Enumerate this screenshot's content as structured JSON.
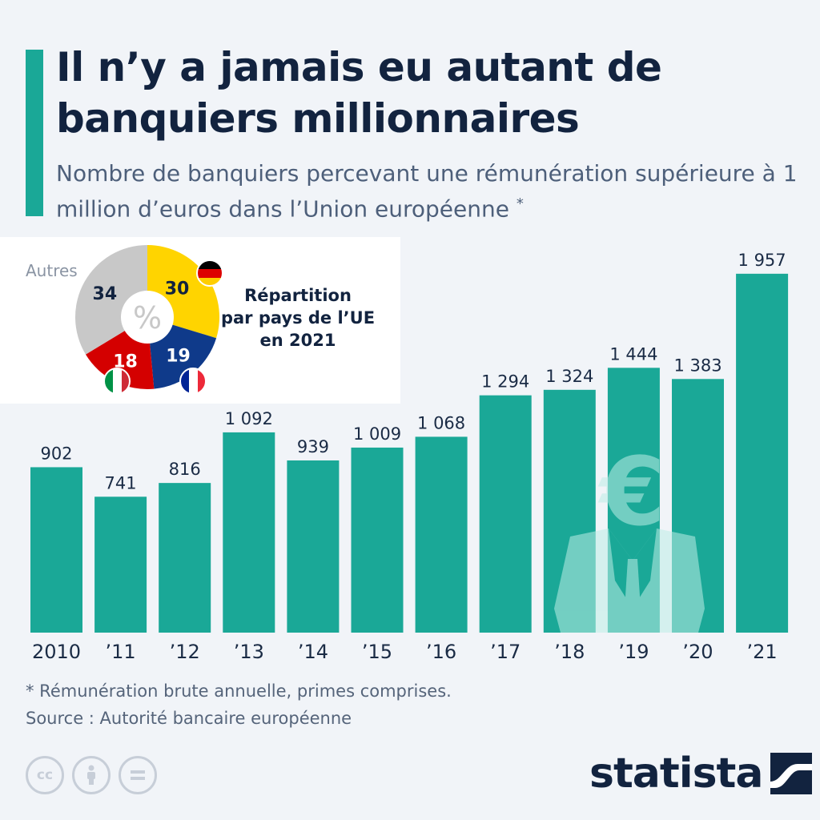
{
  "header": {
    "title": "Il n’y a jamais eu autant de banquiers millionnaires",
    "subtitle": "Nombre de banquiers percevant une rémunération supérieure à 1 million d’euros dans l’Union européenne",
    "subtitle_marker": "*"
  },
  "chart_data": [
    {
      "type": "bar",
      "categories": [
        "2010",
        "’11",
        "’12",
        "’13",
        "’14",
        "’15",
        "’16",
        "’17",
        "’18",
        "’19",
        "’20",
        "’21"
      ],
      "values": [
        902,
        741,
        816,
        1092,
        939,
        1009,
        1068,
        1294,
        1324,
        1444,
        1383,
        1957
      ],
      "value_labels": [
        "902",
        "741",
        "816",
        "1 092",
        "939",
        "1 009",
        "1 068",
        "1 294",
        "1 324",
        "1 444",
        "1 383",
        "1 957"
      ],
      "ylim": [
        0,
        2000
      ],
      "grid": false,
      "bar_color": "#1aa897"
    },
    {
      "type": "pie",
      "title": "Répartition par pays de l’UE en 2021",
      "center_label": "%",
      "slices": [
        {
          "label": "30",
          "value": 30,
          "color": "#ffd400",
          "flag": "germany-flag"
        },
        {
          "label": "19",
          "value": 19,
          "color": "#0f3a8a",
          "flag": "france-flag"
        },
        {
          "label": "18",
          "value": 18,
          "color": "#d40000",
          "flag": "italy-flag"
        },
        {
          "label": "34",
          "value": 34,
          "color": "#c8c8c8",
          "name": "Autres"
        }
      ]
    }
  ],
  "inset": {
    "title_lines": [
      "Répartition",
      "par pays de l’UE",
      "en 2021"
    ],
    "others_label": "Autres"
  },
  "footer": {
    "note": "* Rémunération brute annuelle, primes comprises.",
    "source": "Source : Autorité bancaire européenne",
    "brand": "statista",
    "license_icons": [
      "cc-icon",
      "by-icon",
      "nd-icon"
    ],
    "cc_text": "cc"
  },
  "colors": {
    "accent": "#1aa897",
    "title": "#12233f",
    "background": "#f1f4f8"
  }
}
